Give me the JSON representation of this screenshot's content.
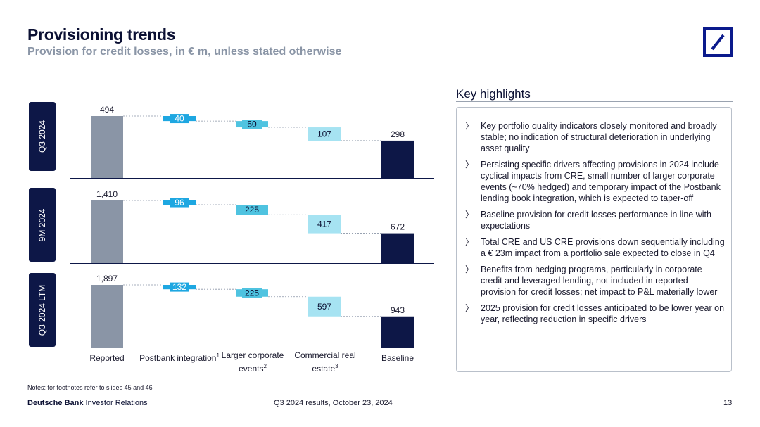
{
  "header": {
    "title": "Provisioning trends",
    "subtitle": "Provision for credit losses, in € m, unless stated otherwise"
  },
  "colors": {
    "reported": "#8a95a6",
    "postbank": "#1ea7e1",
    "larger_corporate": "#4fc3e0",
    "cre": "#a6e3f2",
    "baseline": "#0d1747",
    "label_box": "#0d1747"
  },
  "chart_data": {
    "type": "waterfall",
    "categories": [
      "Reported",
      "Postbank integration",
      "Larger corporate events",
      "Commercial real estate",
      "Baseline"
    ],
    "category_labels": [
      {
        "text": "Reported",
        "sup": ""
      },
      {
        "text": "Postbank integration",
        "sup": "1"
      },
      {
        "text": "Larger corporate events",
        "sup": "2"
      },
      {
        "text": "Commercial real estate",
        "sup": "3"
      },
      {
        "text": "Baseline",
        "sup": ""
      }
    ],
    "panels": [
      {
        "label": "Q3 2024",
        "reported": 494,
        "reported_label": "494",
        "deltas": [
          40,
          50,
          107
        ],
        "delta_labels": [
          "40",
          "50",
          "107"
        ],
        "baseline": 298,
        "baseline_label": "298"
      },
      {
        "label": "9M 2024",
        "reported": 1410,
        "reported_label": "1,410",
        "deltas": [
          96,
          225,
          417
        ],
        "delta_labels": [
          "96",
          "225",
          "417"
        ],
        "baseline": 672,
        "baseline_label": "672"
      },
      {
        "label": "Q3 2024 LTM",
        "reported": 1897,
        "reported_label": "1,897",
        "deltas": [
          132,
          225,
          597
        ],
        "delta_labels": [
          "132",
          "225",
          "597"
        ],
        "baseline": 943,
        "baseline_label": "943"
      }
    ]
  },
  "highlights": {
    "title": "Key highlights",
    "bullet_glyph": "〉",
    "items": [
      "Key portfolio quality indicators closely monitored and broadly stable; no indication of structural deterioration in underlying asset quality",
      "Persisting specific drivers affecting provisions in 2024 include cyclical impacts from CRE, small number of larger corporate events (~70% hedged) and temporary impact of the Postbank lending book integration, which is expected to taper-off",
      "Baseline provision for credit losses performance in line with expectations",
      "Total CRE and US CRE provisions down sequentially including a € 23m impact from a portfolio sale expected to close in Q4",
      "Benefits from hedging programs, particularly in corporate credit and leveraged lending, not included in reported provision for credit losses; net impact to P&L materially lower",
      "2025 provision for credit losses anticipated to be lower year on year, reflecting reduction in specific drivers"
    ]
  },
  "footer": {
    "notes": "Notes: for footnotes refer to slides 45 and 46",
    "brand_bold": "Deutsche Bank",
    "brand_rest": " Investor Relations",
    "center": "Q3 2024 results, October 23, 2024",
    "page": "13"
  }
}
